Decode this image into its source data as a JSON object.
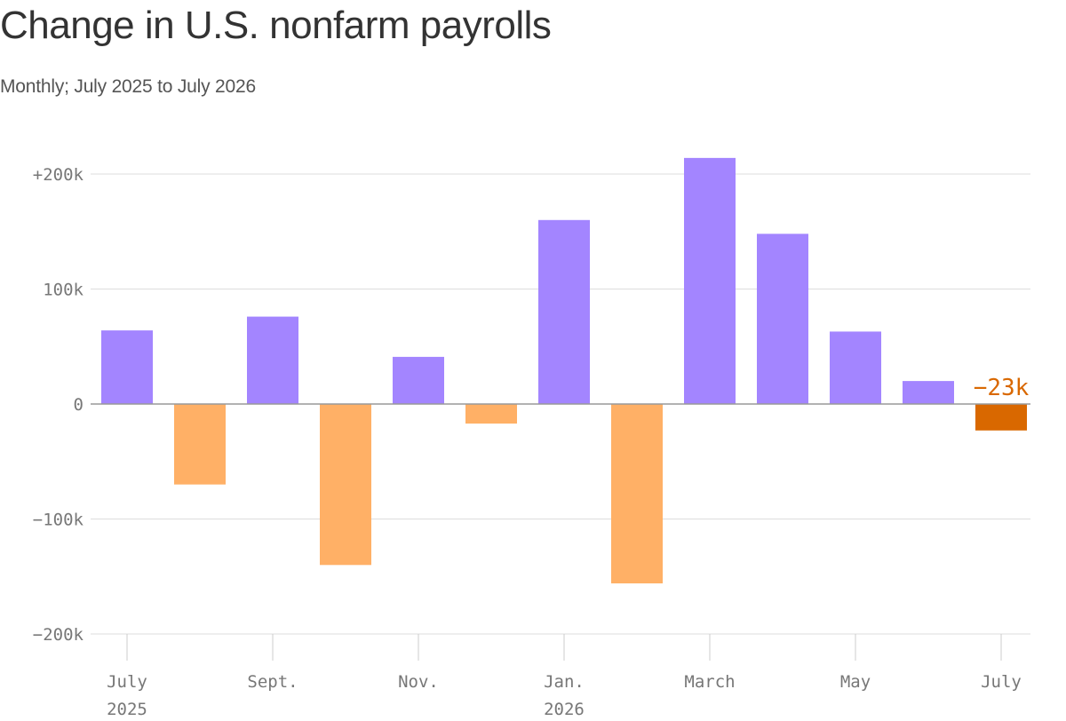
{
  "header": {
    "title": "Change in U.S. nonfarm payrolls",
    "subtitle": "Monthly; July 2025 to July 2026"
  },
  "colors": {
    "positive": "#a385ff",
    "negative": "#ffb066",
    "highlight": "#d96800"
  },
  "chart_data": {
    "type": "bar",
    "title": "Change in U.S. nonfarm payrolls",
    "subtitle": "Monthly; July 2025 to July 2026",
    "xlabel": "",
    "ylabel": "",
    "categories": [
      "Jul 2025",
      "Aug 2025",
      "Sep 2025",
      "Oct 2025",
      "Nov 2025",
      "Dec 2025",
      "Jan 2026",
      "Feb 2026",
      "Mar 2026",
      "Apr 2026",
      "May 2026",
      "Jun 2026",
      "Jul 2026"
    ],
    "values": [
      64,
      -70,
      76,
      -140,
      41,
      -17,
      160,
      -156,
      214,
      148,
      63,
      20,
      -23
    ],
    "units": "thousands",
    "ylim": [
      -200,
      200
    ],
    "yticks": [
      {
        "value": 200,
        "label": "+200k"
      },
      {
        "value": 100,
        "label": "100k"
      },
      {
        "value": 0,
        "label": "0"
      },
      {
        "value": -100,
        "label": "−100k"
      },
      {
        "value": -200,
        "label": "−200k"
      }
    ],
    "xticks": [
      {
        "index": 0,
        "lines": [
          "July",
          "2025"
        ]
      },
      {
        "index": 2,
        "lines": [
          "Sept."
        ]
      },
      {
        "index": 4,
        "lines": [
          "Nov."
        ]
      },
      {
        "index": 6,
        "lines": [
          "Jan.",
          "2026"
        ]
      },
      {
        "index": 8,
        "lines": [
          "March"
        ]
      },
      {
        "index": 10,
        "lines": [
          "May"
        ]
      },
      {
        "index": 12,
        "lines": [
          "July"
        ]
      }
    ],
    "highlight": {
      "index": 12,
      "label": "−23k"
    },
    "grid": true,
    "legend": "none"
  }
}
